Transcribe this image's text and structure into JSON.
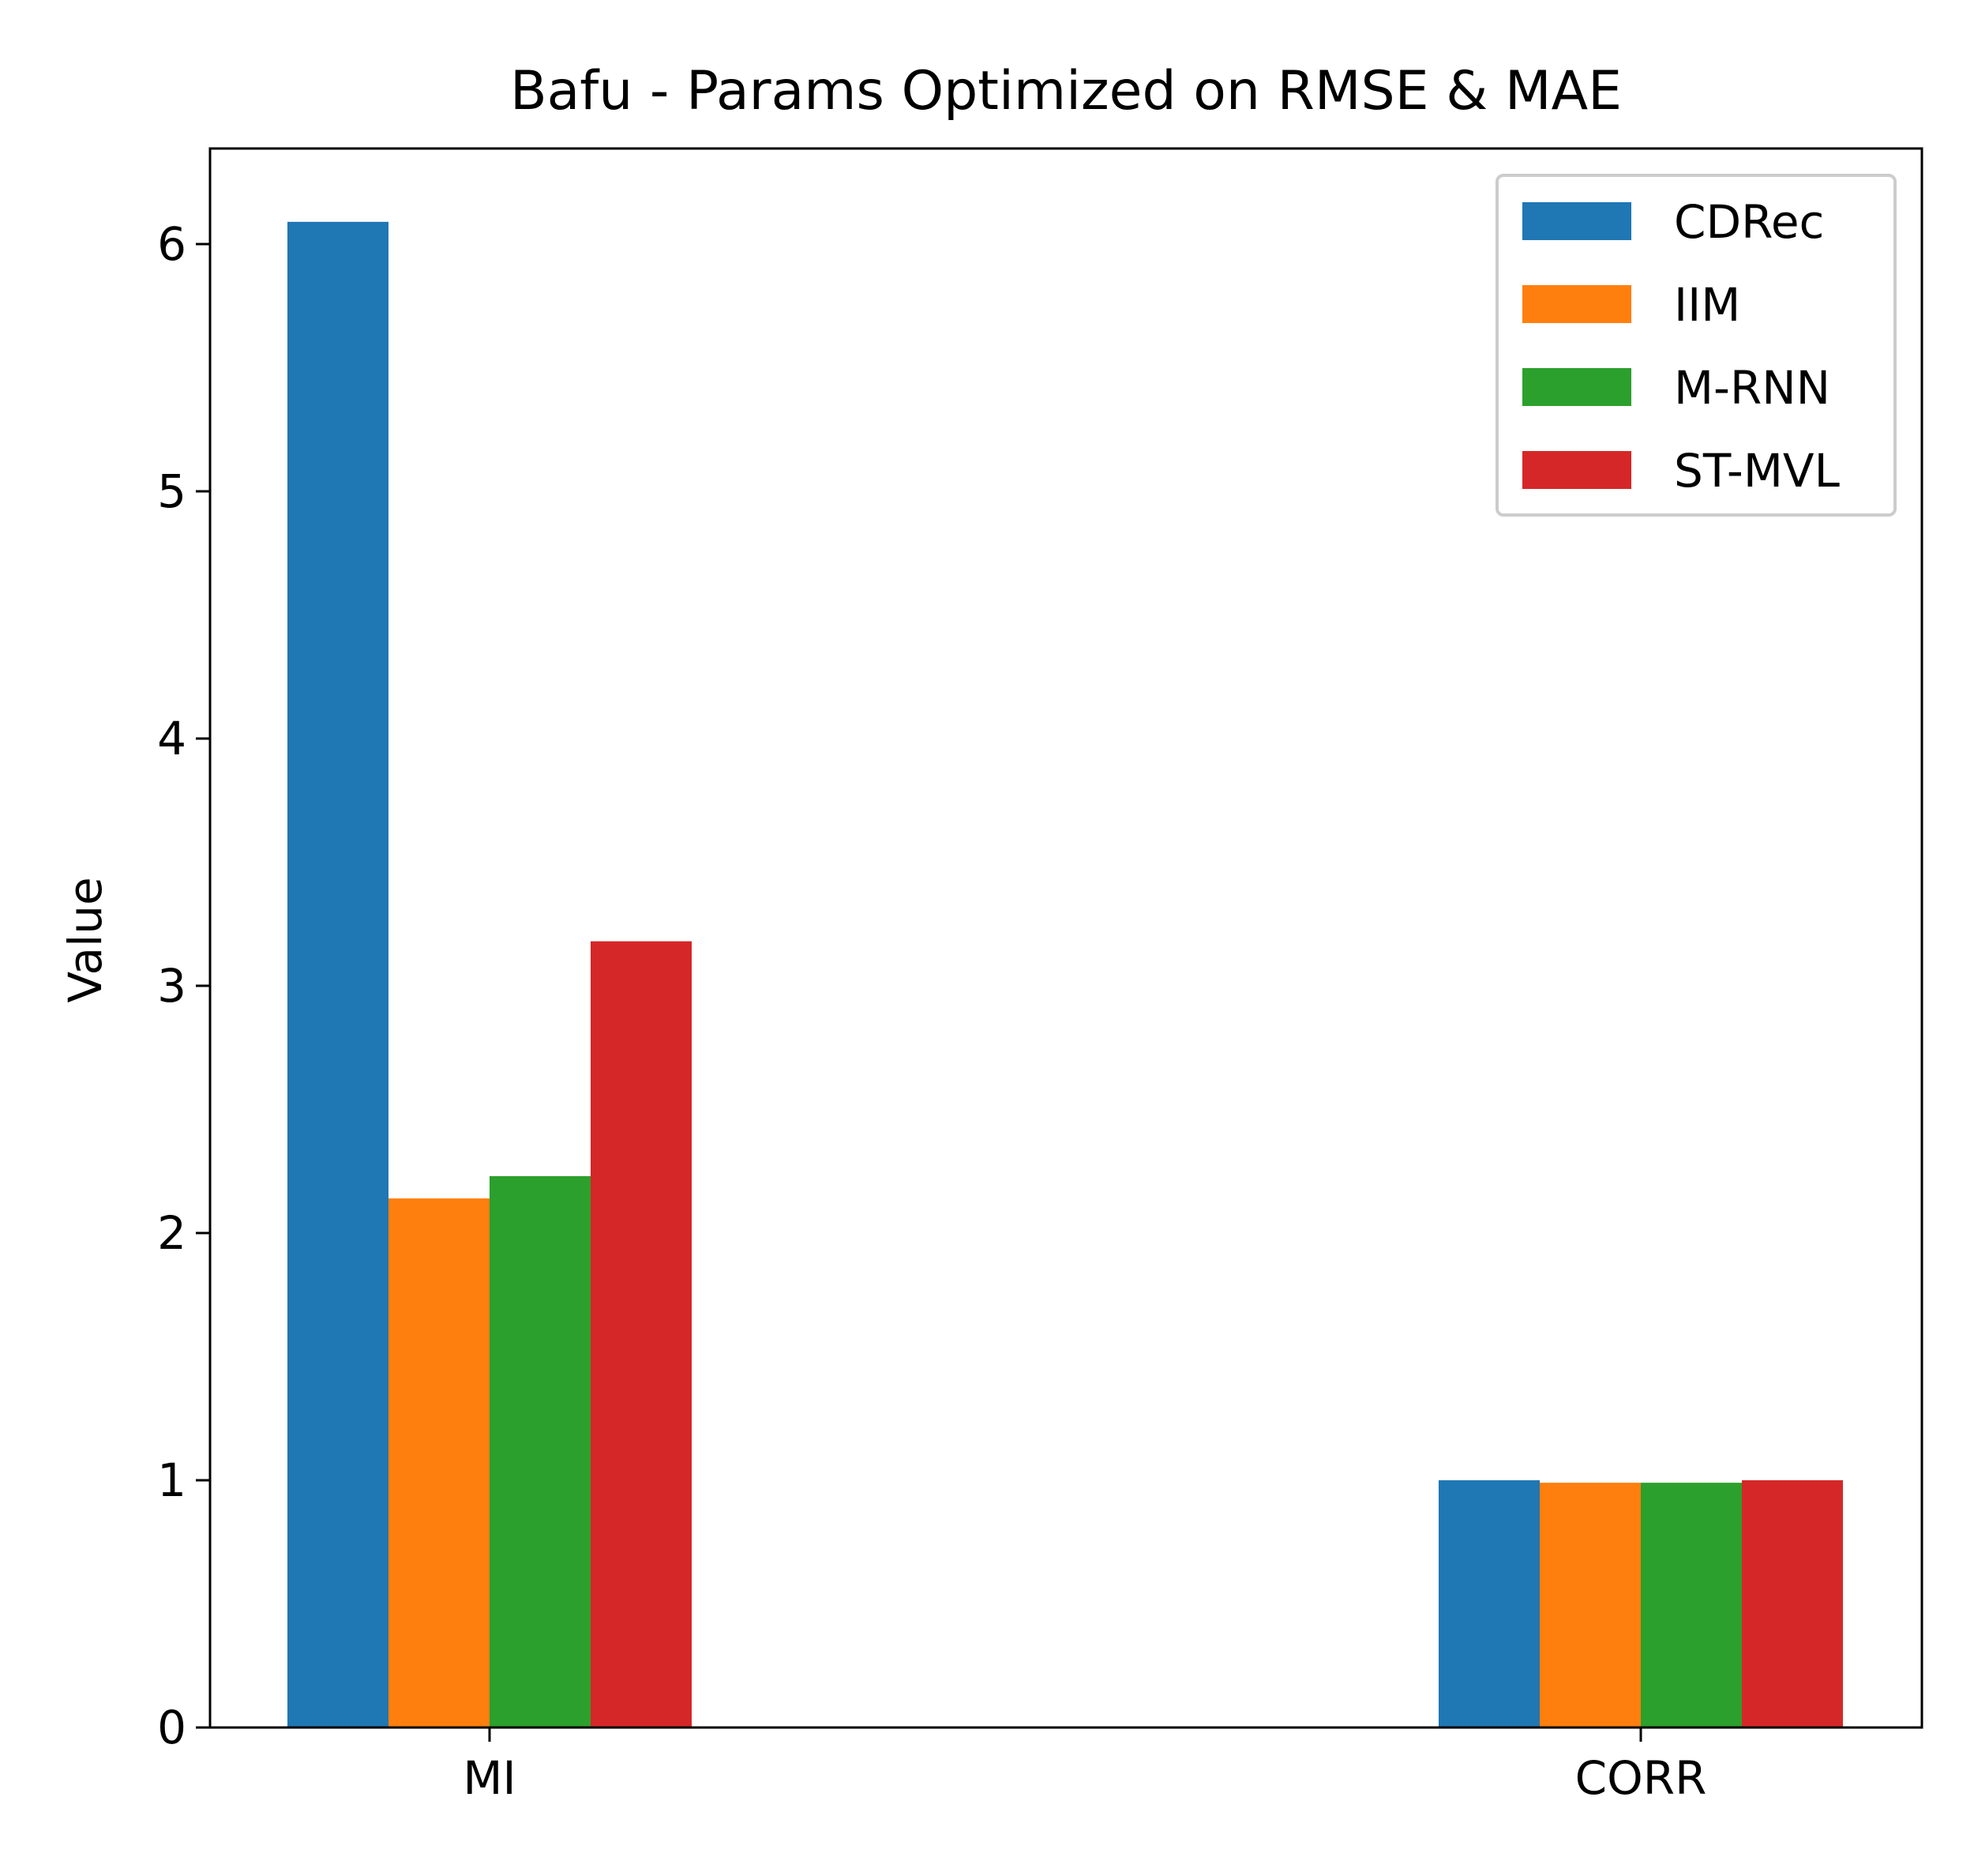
{
  "chart_data": {
    "type": "bar",
    "title": "Bafu - Params Optimized on RMSE & MAE",
    "xlabel": "",
    "ylabel": "Value",
    "categories": [
      "MI",
      "CORR"
    ],
    "series": [
      {
        "name": "CDRec",
        "color": "#1f77b4",
        "values": [
          6.09,
          1.0
        ]
      },
      {
        "name": "IIM",
        "color": "#ff7f0e",
        "values": [
          2.14,
          0.99
        ]
      },
      {
        "name": "M-RNN",
        "color": "#2ca02c",
        "values": [
          2.23,
          0.99
        ]
      },
      {
        "name": "ST-MVL",
        "color": "#d62728",
        "values": [
          3.18,
          1.0
        ]
      }
    ],
    "ylim": [
      0,
      6.4
    ],
    "yticks": [
      "0",
      "1",
      "2",
      "3",
      "4",
      "5",
      "6"
    ],
    "grid": false,
    "legend_position": "top-right"
  }
}
